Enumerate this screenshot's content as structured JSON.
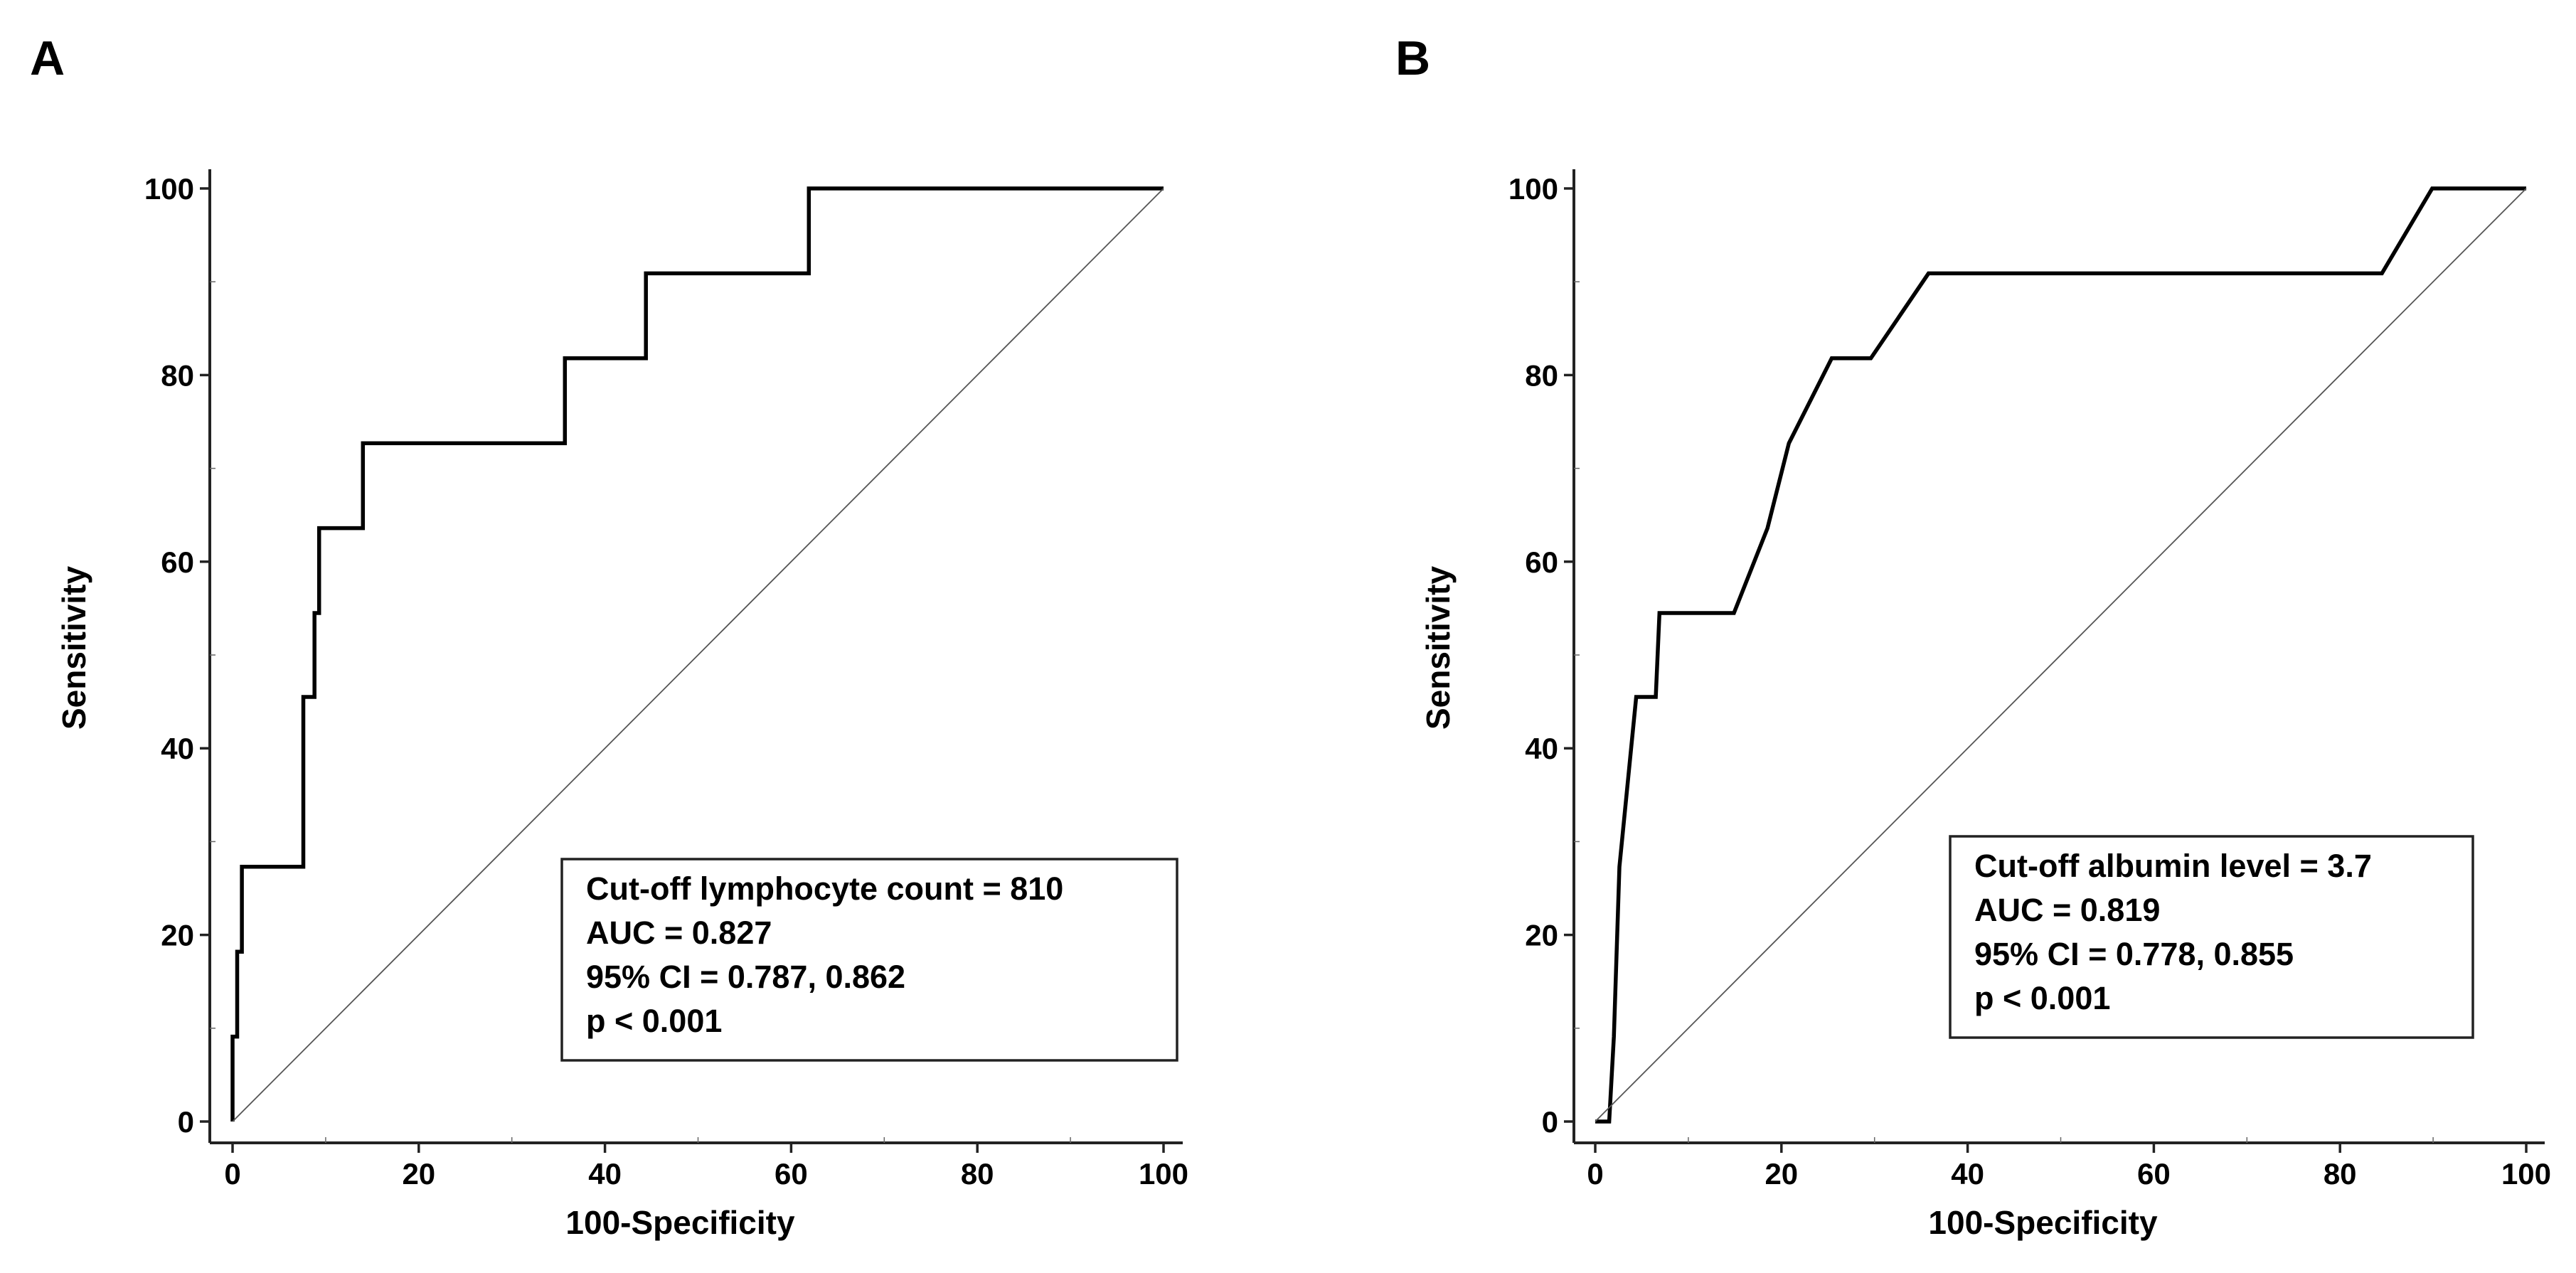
{
  "chart_data": [
    {
      "type": "line",
      "panel_label": "A",
      "title": "",
      "xlabel": "100-Specificity",
      "ylabel": "Sensitivity",
      "xlim": [
        0,
        100
      ],
      "ylim": [
        0,
        100
      ],
      "xticks": [
        0,
        20,
        40,
        60,
        80,
        100
      ],
      "yticks": [
        0,
        20,
        40,
        60,
        80,
        100
      ],
      "grid": false,
      "series": [
        {
          "name": "ROC curve",
          "x": [
            0,
            0,
            0.5,
            0.5,
            1,
            1,
            7.6,
            7.6,
            8.8,
            8.8,
            9.3,
            9.3,
            14,
            14,
            35.7,
            35.7,
            44.4,
            44.4,
            61.9,
            61.9,
            100
          ],
          "y": [
            0,
            9.1,
            9.1,
            18.2,
            18.2,
            27.3,
            27.3,
            45.5,
            45.5,
            54.5,
            54.5,
            63.6,
            63.6,
            72.7,
            72.7,
            81.8,
            81.8,
            90.9,
            90.9,
            100,
            100
          ]
        },
        {
          "name": "Reference line",
          "x": [
            0,
            100
          ],
          "y": [
            0,
            100
          ]
        }
      ],
      "legend": {
        "position": "bottom-right",
        "lines": [
          "Cut-off lymphocyte count = 810",
          "AUC = 0.827",
          "95% CI = 0.787, 0.862",
          "p < 0.001"
        ]
      }
    },
    {
      "type": "line",
      "panel_label": "B",
      "title": "",
      "xlabel": "100-Specificity",
      "ylabel": "Sensitivity",
      "xlim": [
        0,
        100
      ],
      "ylim": [
        0,
        100
      ],
      "xticks": [
        0,
        20,
        40,
        60,
        80,
        100
      ],
      "yticks": [
        0,
        20,
        40,
        60,
        80,
        100
      ],
      "grid": false,
      "series": [
        {
          "name": "ROC curve",
          "x": [
            0,
            1.5,
            2,
            2.6,
            3.5,
            4.4,
            4.4,
            6.5,
            6.9,
            14.9,
            18.5,
            20.8,
            25.4,
            29.6,
            35.8,
            84.5,
            89.9,
            100
          ],
          "y": [
            0,
            0,
            9.1,
            27.3,
            36.4,
            45.5,
            45.5,
            45.5,
            54.5,
            54.5,
            63.6,
            72.7,
            81.8,
            81.8,
            90.9,
            90.9,
            100,
            100
          ]
        },
        {
          "name": "Reference line",
          "x": [
            0,
            100
          ],
          "y": [
            0,
            100
          ]
        }
      ],
      "legend": {
        "position": "bottom-right",
        "lines": [
          "Cut-off albumin level = 3.7",
          "AUC = 0.819",
          "95% CI = 0.778, 0.855",
          "p < 0.001"
        ]
      }
    }
  ]
}
